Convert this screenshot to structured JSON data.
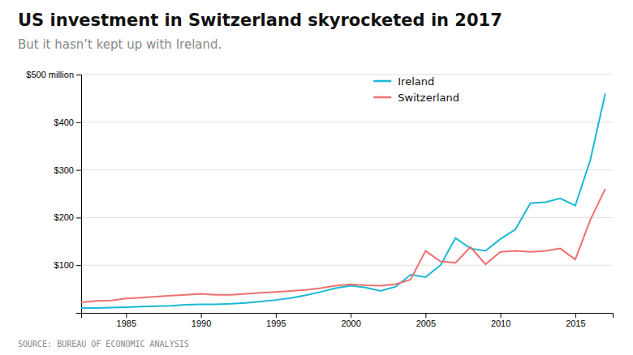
{
  "chart_data": {
    "type": "line",
    "title": "US investment in Switzerland skyrocketed in 2017",
    "subtitle": "But it hasn’t kept up with Ireland.",
    "source": "SOURCE: BUREAU OF ECONOMIC ANALYSIS",
    "x": [
      1982,
      1983,
      1984,
      1985,
      1986,
      1987,
      1988,
      1989,
      1990,
      1991,
      1992,
      1993,
      1994,
      1995,
      1996,
      1997,
      1998,
      1999,
      2000,
      2001,
      2002,
      2003,
      2004,
      2005,
      2006,
      2007,
      2008,
      2009,
      2010,
      2011,
      2012,
      2013,
      2014,
      2015,
      2016,
      2017
    ],
    "series": [
      {
        "name": "Ireland",
        "color": "#1ab8d4",
        "values": [
          10,
          10,
          11,
          12,
          13,
          14,
          15,
          17,
          18,
          18,
          19,
          21,
          24,
          27,
          31,
          37,
          44,
          52,
          57,
          53,
          46,
          55,
          80,
          75,
          100,
          157,
          135,
          130,
          155,
          175,
          230,
          232,
          240,
          225,
          320,
          460
        ]
      },
      {
        "name": "Switzerland",
        "color": "#f07070",
        "values": [
          22,
          25,
          26,
          30,
          32,
          34,
          36,
          38,
          40,
          38,
          38,
          40,
          42,
          44,
          46,
          48,
          52,
          57,
          60,
          58,
          57,
          60,
          70,
          130,
          108,
          105,
          138,
          102,
          128,
          130,
          128,
          130,
          135,
          112,
          195,
          260
        ]
      }
    ],
    "xlim": [
      1982,
      2017.5
    ],
    "xticks": [
      1985,
      1990,
      1995,
      2000,
      2005,
      2010,
      2015
    ],
    "ylim": [
      0,
      500
    ],
    "yticks": [
      {
        "value": 100,
        "label": "$100"
      },
      {
        "value": 200,
        "label": "$200"
      },
      {
        "value": 300,
        "label": "$300"
      },
      {
        "value": 400,
        "label": "$400"
      },
      {
        "value": 500,
        "label": "$500 million"
      }
    ],
    "grid": true,
    "legend": "upper center"
  }
}
